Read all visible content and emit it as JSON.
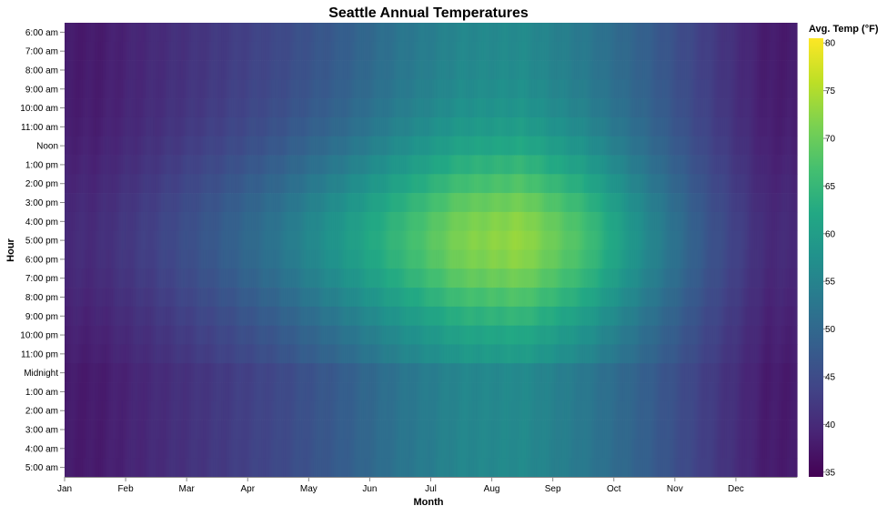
{
  "chart_data": {
    "type": "heatmap",
    "title": "Seattle Annual Temperatures",
    "xlabel": "Month",
    "ylabel": "Hour",
    "x_ticks": [
      "Jan",
      "Feb",
      "Mar",
      "Apr",
      "May",
      "Jun",
      "Jul",
      "Aug",
      "Sep",
      "Oct",
      "Nov",
      "Dec"
    ],
    "y_categories": [
      "6:00 am",
      "7:00 am",
      "8:00 am",
      "9:00 am",
      "10:00 am",
      "11:00 am",
      "Noon",
      "1:00 pm",
      "2:00 pm",
      "3:00 pm",
      "4:00 pm",
      "5:00 pm",
      "6:00 pm",
      "7:00 pm",
      "8:00 pm",
      "9:00 pm",
      "10:00 pm",
      "11:00 pm",
      "Midnight",
      "1:00 am",
      "2:00 am",
      "3:00 am",
      "4:00 am",
      "5:00 am"
    ],
    "legend": {
      "title": "Avg. Temp (°F)",
      "ticks": [
        80,
        75,
        70,
        65,
        60,
        55,
        50,
        45,
        40,
        35
      ],
      "domain": [
        34.5,
        80.5
      ],
      "placement": "right"
    },
    "colorscale": "viridis",
    "monthly_baseline_f": [
      38.5,
      41,
      43.5,
      46.5,
      50.5,
      55.5,
      59.5,
      60.5,
      56.5,
      50.5,
      44,
      38.5
    ],
    "monthly_diurnal_range_f": [
      2.5,
      3.5,
      5.5,
      8,
      11,
      13,
      16,
      17,
      14,
      8,
      4,
      2
    ]
  }
}
